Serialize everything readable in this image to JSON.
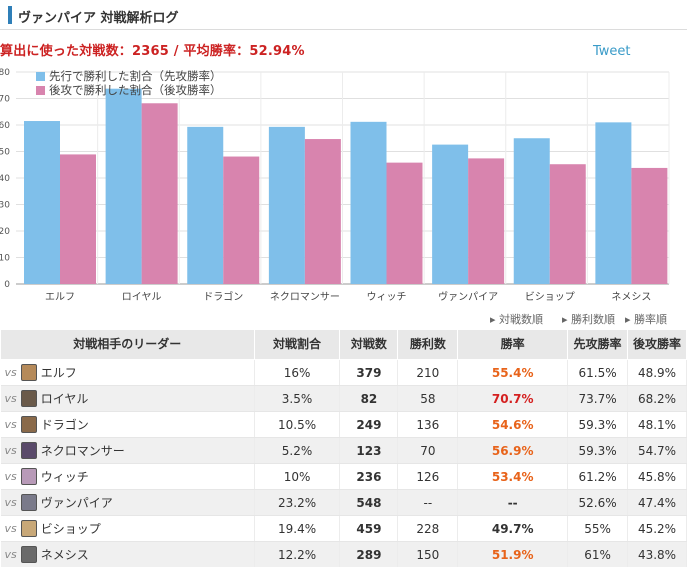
{
  "header": {
    "title": "ヴァンパイア 対戦解析ログ"
  },
  "summary": "算出に使った対戦数：2365 / 平均勝率：52.94%",
  "tweet_label": "Tweet",
  "chart_data": {
    "type": "bar",
    "categories": [
      "エルフ",
      "ロイヤル",
      "ドラゴン",
      "ネクロマンサー",
      "ウィッチ",
      "ヴァンパイア",
      "ビショップ",
      "ネメシス"
    ],
    "series": [
      {
        "name": "先行で勝利した割合（先攻勝率）",
        "color": "#7fbfea",
        "values": [
          61.5,
          73.7,
          59.3,
          59.3,
          61.2,
          52.6,
          55.0,
          61.0
        ]
      },
      {
        "name": "後攻で勝利した割合（後攻勝率）",
        "color": "#d884ae",
        "values": [
          48.9,
          68.2,
          48.1,
          54.7,
          45.8,
          47.4,
          45.2,
          43.8
        ]
      }
    ],
    "yticks": [
      "0",
      "10",
      "20",
      "30",
      "40",
      "50",
      "60",
      "70",
      "80"
    ],
    "ylim": [
      0,
      80
    ],
    "grid": true,
    "legend": "top-left"
  },
  "sort_links": [
    "対戦数順",
    "勝利数順",
    "勝率順"
  ],
  "table": {
    "headers": [
      "対戦相手のリーダー",
      "対戦割合",
      "対戦数",
      "勝利数",
      "勝率",
      "先攻勝率",
      "後攻勝率"
    ],
    "vs_label": "vs",
    "rows": [
      {
        "leader": "エルフ",
        "avatar_color": "#b58a5a",
        "share": "16%",
        "games": "379",
        "wins": "210",
        "rate": "55.4%",
        "rate_color": "orange",
        "first": "61.5%",
        "second": "48.9%"
      },
      {
        "leader": "ロイヤル",
        "avatar_color": "#6a5a4a",
        "share": "3.5%",
        "games": "82",
        "wins": "58",
        "rate": "70.7%",
        "rate_color": "red",
        "first": "73.7%",
        "second": "68.2%"
      },
      {
        "leader": "ドラゴン",
        "avatar_color": "#8a6a4a",
        "share": "10.5%",
        "games": "249",
        "wins": "136",
        "rate": "54.6%",
        "rate_color": "orange",
        "first": "59.3%",
        "second": "48.1%"
      },
      {
        "leader": "ネクロマンサー",
        "avatar_color": "#5a4a6a",
        "share": "5.2%",
        "games": "123",
        "wins": "70",
        "rate": "56.9%",
        "rate_color": "orange",
        "first": "59.3%",
        "second": "54.7%"
      },
      {
        "leader": "ウィッチ",
        "avatar_color": "#b89ab8",
        "share": "10%",
        "games": "236",
        "wins": "126",
        "rate": "53.4%",
        "rate_color": "orange",
        "first": "61.2%",
        "second": "45.8%"
      },
      {
        "leader": "ヴァンパイア",
        "avatar_color": "#7a7a8a",
        "share": "23.2%",
        "games": "548",
        "wins": "--",
        "rate": "--",
        "rate_color": "black",
        "first": "52.6%",
        "second": "47.4%"
      },
      {
        "leader": "ビショップ",
        "avatar_color": "#c8a878",
        "share": "19.4%",
        "games": "459",
        "wins": "228",
        "rate": "49.7%",
        "rate_color": "black",
        "first": "55%",
        "second": "45.2%"
      },
      {
        "leader": "ネメシス",
        "avatar_color": "#6a6a6a",
        "share": "12.2%",
        "games": "289",
        "wins": "150",
        "rate": "51.9%",
        "rate_color": "orange",
        "first": "61%",
        "second": "43.8%"
      }
    ]
  }
}
